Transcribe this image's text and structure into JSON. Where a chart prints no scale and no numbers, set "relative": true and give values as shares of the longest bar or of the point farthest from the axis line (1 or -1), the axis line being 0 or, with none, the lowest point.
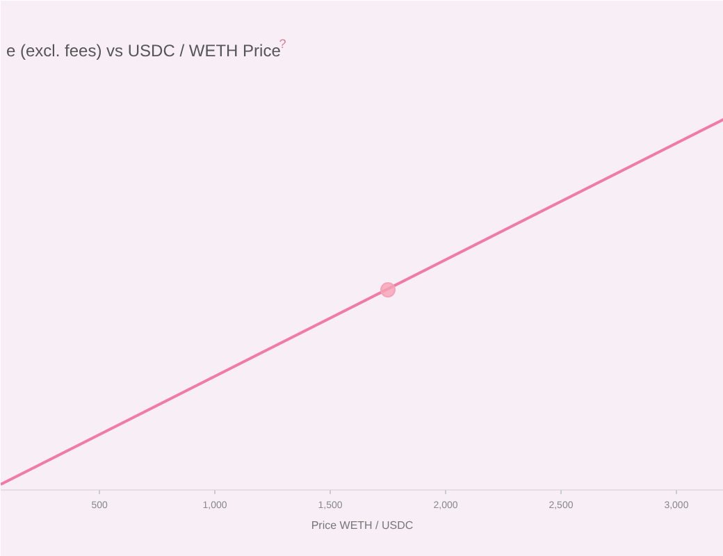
{
  "chart_data": {
    "type": "line",
    "title": "e (excl. fees) vs USDC / WETH Price",
    "xlabel": "Price WETH / USDC",
    "annotations": [
      "?"
    ],
    "relative": true,
    "xlim": [
      72,
      3205
    ],
    "xticks": [
      {
        "value": 500,
        "label": "500"
      },
      {
        "value": 1000,
        "label": "1,000"
      },
      {
        "value": 1500,
        "label": "1,500"
      },
      {
        "value": 2000,
        "label": "2,000"
      },
      {
        "value": 2500,
        "label": "2,500"
      },
      {
        "value": 3000,
        "label": "3,000"
      }
    ],
    "grid": false,
    "series": [
      {
        "type": "line",
        "color": "#f07aa8",
        "x": [
          72,
          3205
        ],
        "values": [
          0.015,
          1
        ]
      },
      {
        "type": "scatter",
        "color": "#f5a3b5",
        "x": [
          1750
        ],
        "values": [
          0.54
        ],
        "marker": "circle"
      }
    ]
  }
}
